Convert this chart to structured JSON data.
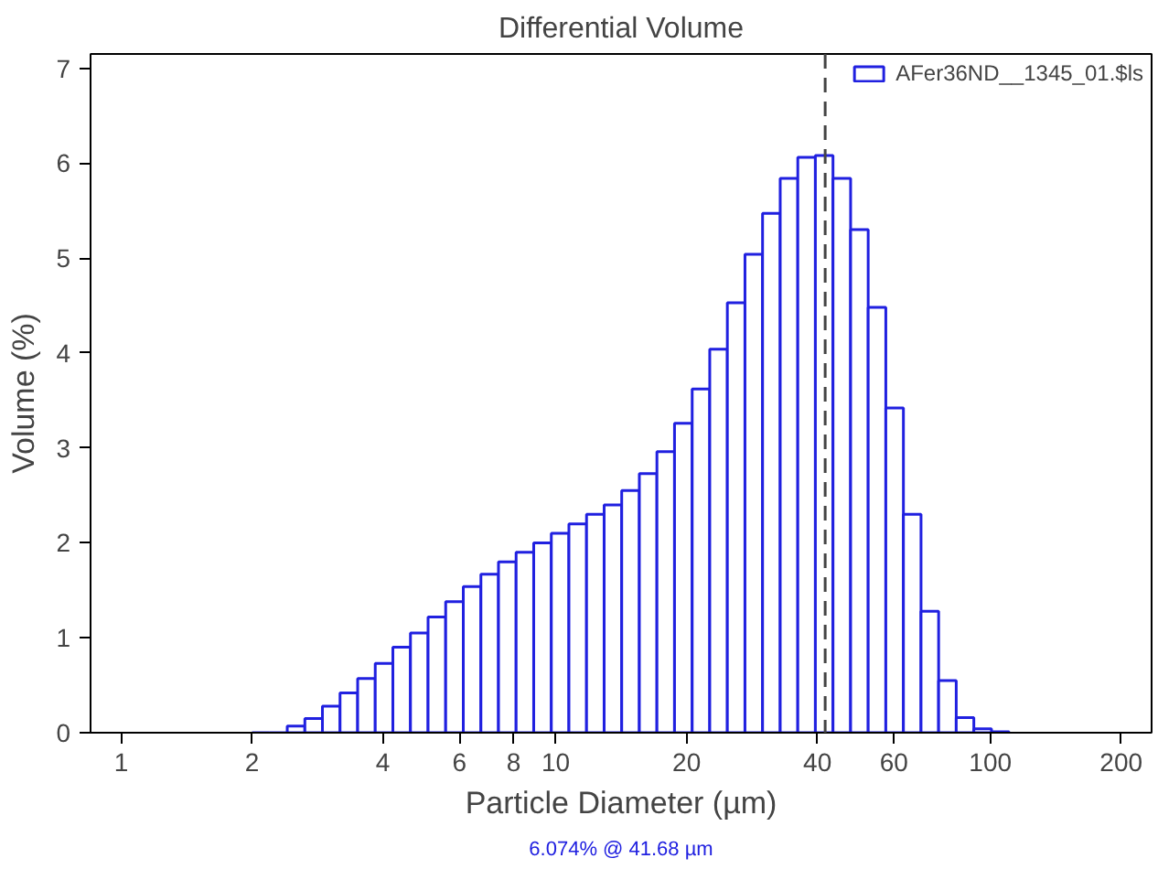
{
  "chart_data": {
    "type": "histogram",
    "title": "Differential Volume",
    "xlabel": "Particle Diameter (µm)",
    "ylabel": "Volume (%)",
    "bins": [
      2.0,
      2.195,
      2.41,
      2.646,
      2.904,
      3.188,
      3.5,
      3.842,
      4.218,
      4.63,
      5.083,
      5.58,
      6.126,
      6.725,
      7.382,
      8.104,
      8.896,
      9.766,
      10.72,
      11.77,
      12.92,
      14.18,
      15.57,
      17.09,
      18.76,
      20.6,
      22.61,
      24.82,
      27.25,
      29.91,
      32.84,
      36.05,
      39.57,
      43.44,
      47.69,
      52.35,
      57.47,
      63.09,
      69.26,
      76.03,
      83.46,
      91.62,
      100.6,
      110.4
    ],
    "series": [
      {
        "name": "AFer36ND__1345_01.$ls",
        "color": "#2020e0",
        "values": [
          0,
          0,
          0.07,
          0.15,
          0.28,
          0.42,
          0.57,
          0.73,
          0.9,
          1.05,
          1.22,
          1.38,
          1.54,
          1.67,
          1.8,
          1.9,
          2.0,
          2.1,
          2.2,
          2.3,
          2.4,
          2.55,
          2.73,
          2.96,
          3.26,
          3.62,
          4.04,
          4.53,
          5.04,
          5.47,
          5.84,
          6.06,
          6.08,
          5.84,
          5.3,
          4.48,
          3.42,
          2.3,
          1.28,
          0.55,
          0.16,
          0.04,
          0.01
        ]
      }
    ],
    "log": "x",
    "xlim": [
      0.85,
      235
    ],
    "xticks": [
      1,
      2,
      4,
      6,
      8,
      10,
      20,
      40,
      60,
      100,
      200
    ],
    "ylim": [
      0,
      7.15
    ],
    "yticks": [
      0,
      1,
      2,
      3,
      4,
      5,
      6,
      7
    ],
    "ref_lines": [
      {
        "axis": "x",
        "value": 41.68,
        "color": "#444444",
        "line_style": "dashed"
      }
    ],
    "annotations": [
      "6.074% @ 41.68 µm"
    ],
    "grid": false,
    "legend": "top right"
  }
}
